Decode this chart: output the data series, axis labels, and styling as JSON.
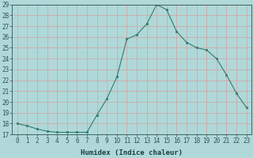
{
  "x": [
    0,
    1,
    2,
    3,
    4,
    5,
    6,
    7,
    8,
    9,
    10,
    11,
    12,
    13,
    14,
    15,
    16,
    17,
    18,
    19,
    20,
    21,
    22,
    23
  ],
  "y": [
    18.0,
    17.8,
    17.5,
    17.3,
    17.2,
    17.2,
    17.2,
    17.2,
    18.8,
    20.3,
    22.3,
    25.8,
    26.2,
    27.2,
    29.0,
    28.5,
    26.5,
    25.5,
    25.0,
    24.8,
    24.0,
    22.5,
    20.8,
    19.5
  ],
  "xlabel": "Humidex (Indice chaleur)",
  "ylim": [
    17,
    29
  ],
  "xlim": [
    -0.5,
    23.5
  ],
  "yticks": [
    17,
    18,
    19,
    20,
    21,
    22,
    23,
    24,
    25,
    26,
    27,
    28,
    29
  ],
  "xticks": [
    0,
    1,
    2,
    3,
    4,
    5,
    6,
    7,
    8,
    9,
    10,
    11,
    12,
    13,
    14,
    15,
    16,
    17,
    18,
    19,
    20,
    21,
    22,
    23
  ],
  "line_color": "#2e7d6e",
  "marker_color": "#2e7d6e",
  "bg_color": "#b0d8d8",
  "grid_color": "#d4a0a0",
  "tick_color": "#2e5555",
  "label_color": "#1a4040",
  "tick_fontsize": 5.5,
  "axis_fontsize": 6.5
}
